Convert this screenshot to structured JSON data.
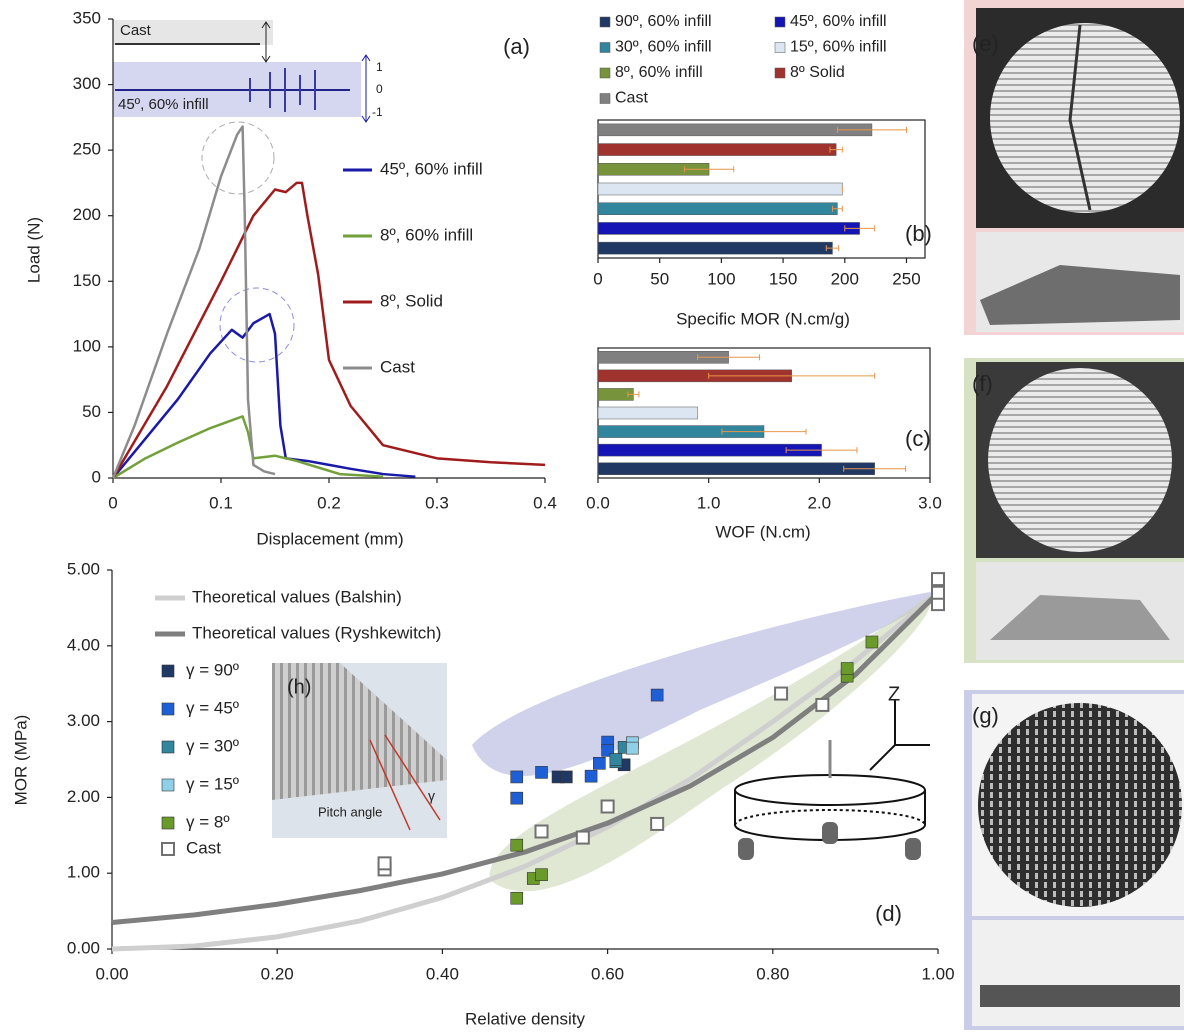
{
  "chart_data": [
    {
      "type": "line",
      "xlabel": "Displacement (mm)",
      "ylabel": "Load (N)",
      "xlim": [
        0,
        0.4
      ],
      "xticks": [
        0,
        0.1,
        0.2,
        0.3,
        0.4
      ],
      "ylim": [
        0,
        350
      ],
      "yticks": [
        0,
        50,
        100,
        150,
        200,
        250,
        300,
        350
      ],
      "annotations": [
        "(a)",
        "Cast",
        "45º, 60% infill",
        "1",
        "0",
        "-1"
      ],
      "series": [
        {
          "name": "45º, 60% infill",
          "color": "#1a1aa8",
          "x": [
            0,
            0.03,
            0.06,
            0.09,
            0.11,
            0.12,
            0.13,
            0.145,
            0.15,
            0.155,
            0.16,
            0.18,
            0.2,
            0.22,
            0.25,
            0.28
          ],
          "values": [
            0,
            30,
            60,
            95,
            113,
            107,
            118,
            125,
            110,
            40,
            15,
            13,
            10,
            7,
            3,
            1
          ]
        },
        {
          "name": "8º, 60% infill",
          "color": "#72a03a",
          "x": [
            0,
            0.03,
            0.06,
            0.09,
            0.11,
            0.12,
            0.125,
            0.13,
            0.15,
            0.17,
            0.19,
            0.21,
            0.25
          ],
          "values": [
            0,
            15,
            27,
            38,
            44,
            47,
            35,
            15,
            17,
            13,
            8,
            3,
            1
          ]
        },
        {
          "name": "8º, Solid",
          "color": "#a01c1c",
          "x": [
            0,
            0.05,
            0.1,
            0.13,
            0.15,
            0.16,
            0.17,
            0.175,
            0.18,
            0.19,
            0.2,
            0.22,
            0.25,
            0.3,
            0.35,
            0.4
          ],
          "values": [
            0,
            70,
            150,
            200,
            220,
            218,
            225,
            225,
            200,
            155,
            90,
            55,
            25,
            15,
            12,
            10
          ]
        },
        {
          "name": "Cast",
          "color": "#8c8c8c",
          "x": [
            0,
            0.02,
            0.05,
            0.08,
            0.1,
            0.115,
            0.12,
            0.122,
            0.125,
            0.13,
            0.14,
            0.15
          ],
          "values": [
            0,
            40,
            110,
            175,
            230,
            262,
            268,
            200,
            60,
            10,
            5,
            3
          ]
        }
      ]
    },
    {
      "type": "hbar",
      "xlabel": "Specific MOR (N.cm/g)",
      "xlim": [
        0,
        265
      ],
      "xticks": [
        0,
        50,
        100,
        150,
        200,
        250
      ],
      "annotations": [
        "(b)"
      ],
      "categories": [
        "90º, 60% infill",
        "45º, 60% infill",
        "30º, 60% infill",
        "15º, 60% infill",
        "8º, 60% infill",
        "8º Solid",
        "Cast"
      ],
      "colors": [
        "#1f3864",
        "#1515b5",
        "#31859c",
        "#dce6f2",
        "#77933c",
        "#a0332e",
        "#808080"
      ],
      "values": [
        190,
        212,
        194,
        198,
        90,
        193,
        222
      ],
      "errors": [
        5,
        12,
        4,
        0,
        20,
        5,
        28
      ],
      "error_color": "#e8964a"
    },
    {
      "type": "hbar",
      "xlabel": "WOF (N.cm)",
      "xlim": [
        0,
        3.0
      ],
      "xticks": [
        {
          "value": 0,
          "label": "0.0"
        },
        {
          "value": 1,
          "label": "1.0"
        },
        {
          "value": 2,
          "label": "2.0"
        },
        {
          "value": 3,
          "label": "3.0"
        }
      ],
      "annotations": [
        "(c)"
      ],
      "colors": [
        "#1f3864",
        "#1515b5",
        "#31859c",
        "#dce6f2",
        "#77933c",
        "#a0332e",
        "#808080"
      ],
      "values": [
        2.5,
        2.02,
        1.5,
        0.9,
        0.32,
        1.75,
        1.18
      ],
      "errors": [
        0.28,
        0.32,
        0.38,
        0,
        0.05,
        0.75,
        0.28
      ],
      "error_color": "#e8964a"
    },
    {
      "type": "scatter",
      "xlabel": "Relative density",
      "ylabel": "MOR (MPa)",
      "xlim": [
        0,
        1
      ],
      "xticks": [
        {
          "value": 0,
          "label": "0.00"
        },
        {
          "value": 0.2,
          "label": "0.20"
        },
        {
          "value": 0.4,
          "label": "0.40"
        },
        {
          "value": 0.6,
          "label": "0.60"
        },
        {
          "value": 0.8,
          "label": "0.80"
        },
        {
          "value": 1,
          "label": "1.00"
        }
      ],
      "ylim": [
        0,
        5
      ],
      "yticks": [
        {
          "value": 0,
          "label": "0.00"
        },
        {
          "value": 1,
          "label": "1.00"
        },
        {
          "value": 2,
          "label": "2.00"
        },
        {
          "value": 3,
          "label": "3.00"
        },
        {
          "value": 4,
          "label": "4.00"
        },
        {
          "value": 5,
          "label": "5.00"
        }
      ],
      "annotations": [
        "(d)",
        "(h)",
        "Pitch angle",
        "Z",
        "γ"
      ],
      "series": [
        {
          "name": "Theoretical values (Balshin)",
          "mode": "line",
          "color": "#cfcfcf",
          "x": [
            0,
            0.1,
            0.2,
            0.3,
            0.4,
            0.5,
            0.6,
            0.7,
            0.8,
            0.9,
            1
          ],
          "values": [
            0,
            0.04,
            0.16,
            0.37,
            0.68,
            1.09,
            1.61,
            2.24,
            3.0,
            3.8,
            4.7
          ]
        },
        {
          "name": "Theoretical values (Ryshkewitch)",
          "mode": "line",
          "color": "#7f7f7f",
          "x": [
            0,
            0.1,
            0.2,
            0.3,
            0.4,
            0.5,
            0.6,
            0.7,
            0.8,
            0.9,
            1
          ],
          "values": [
            0.35,
            0.45,
            0.59,
            0.77,
            0.99,
            1.28,
            1.66,
            2.15,
            2.79,
            3.62,
            4.7
          ]
        },
        {
          "name": "γ = 90º",
          "mode": "square",
          "color": "#1f3864",
          "x": [
            0.54,
            0.55,
            0.62
          ],
          "values": [
            2.27,
            2.27,
            2.43
          ]
        },
        {
          "name": "γ = 45º",
          "mode": "square",
          "color": "#1f5fd6",
          "x": [
            0.49,
            0.49,
            0.52,
            0.58,
            0.59,
            0.6,
            0.6,
            0.66
          ],
          "values": [
            2.27,
            1.99,
            2.33,
            2.28,
            2.45,
            2.73,
            2.62,
            3.35
          ]
        },
        {
          "name": "γ = 30º",
          "mode": "square",
          "color": "#31859c",
          "x": [
            0.61,
            0.62,
            0.61
          ],
          "values": [
            2.47,
            2.66,
            2.5
          ]
        },
        {
          "name": "γ = 15º",
          "mode": "square",
          "color": "#8fd0e8",
          "x": [
            0.63,
            0.63
          ],
          "values": [
            2.72,
            2.65
          ]
        },
        {
          "name": "γ = 8º",
          "mode": "square",
          "color": "#6a9a2a",
          "x": [
            0.49,
            0.49,
            0.51,
            0.52,
            0.89,
            0.89,
            0.92
          ],
          "values": [
            0.67,
            1.37,
            0.93,
            0.98,
            3.6,
            3.7,
            4.05
          ]
        },
        {
          "name": "Cast",
          "mode": "square-open",
          "color": "#707070",
          "x": [
            0.33,
            0.33,
            0.52,
            0.57,
            0.6,
            0.66,
            0.81,
            0.86,
            1,
            1,
            1
          ],
          "values": [
            1.05,
            1.13,
            1.55,
            1.47,
            1.88,
            1.65,
            3.37,
            3.22,
            4.55,
            4.7,
            4.88
          ]
        }
      ]
    }
  ],
  "photo_labels": [
    "(e)",
    "(f)",
    "(g)"
  ]
}
